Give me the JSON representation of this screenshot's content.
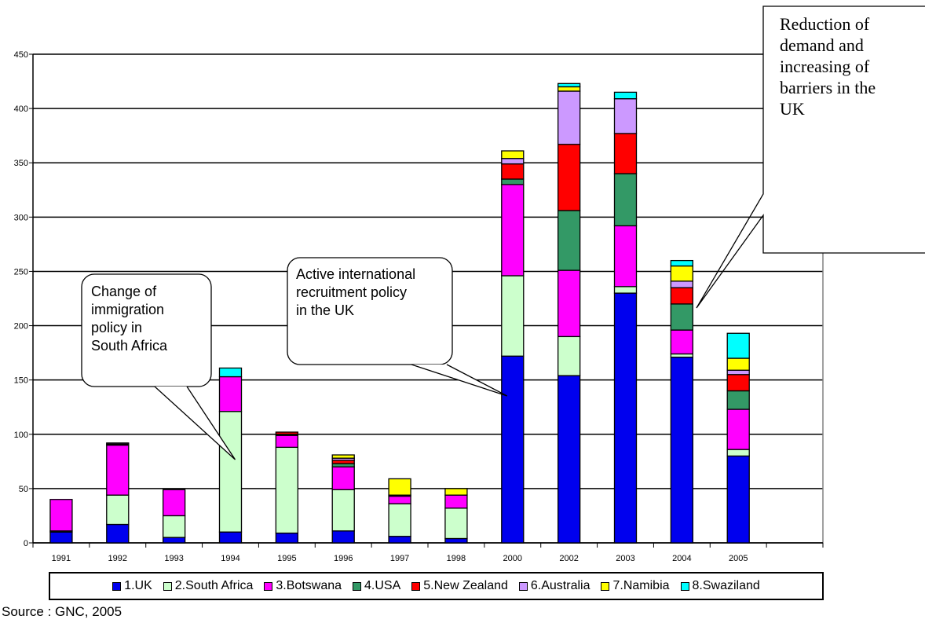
{
  "chart_data": {
    "type": "bar",
    "stacked": true,
    "categories": [
      "1991",
      "1992",
      "1993",
      "1994",
      "1995",
      "1996",
      "1997",
      "1998",
      "2000",
      "2002",
      "2003",
      "2004",
      "2005"
    ],
    "series": [
      {
        "name": "1.UK",
        "color": "#0000ee",
        "values": [
          10,
          17,
          5,
          10,
          9,
          11,
          6,
          4,
          172,
          154,
          230,
          171,
          80
        ]
      },
      {
        "name": "2.South Africa",
        "color": "#ccffcc",
        "values": [
          1,
          27,
          20,
          111,
          79,
          38,
          30,
          28,
          74,
          36,
          6,
          3,
          6
        ]
      },
      {
        "name": "3.Botswana",
        "color": "#ff00ff",
        "values": [
          29,
          46,
          24,
          32,
          11,
          21,
          7,
          12,
          84,
          61,
          56,
          22,
          37
        ]
      },
      {
        "name": "4.USA",
        "color": "#339966",
        "values": [
          0,
          0,
          0,
          0,
          1,
          3,
          0,
          0,
          5,
          55,
          48,
          24,
          17
        ]
      },
      {
        "name": "5.New Zealand",
        "color": "#ff0000",
        "values": [
          0,
          1,
          0,
          0,
          2,
          3,
          0,
          0,
          14,
          61,
          37,
          15,
          15
        ]
      },
      {
        "name": "6.Australia",
        "color": "#cc99ff",
        "values": [
          0,
          1,
          0,
          0,
          0,
          2,
          1,
          0,
          5,
          49,
          32,
          6,
          4
        ]
      },
      {
        "name": "7.Namibia",
        "color": "#ffff00",
        "values": [
          0,
          0,
          0,
          0,
          0,
          3,
          15,
          6,
          7,
          4,
          0,
          14,
          11
        ]
      },
      {
        "name": "8.Swaziland",
        "color": "#00ffff",
        "values": [
          0,
          0,
          0,
          8,
          0,
          0,
          0,
          0,
          0,
          3,
          6,
          5,
          23
        ]
      }
    ],
    "ylim": [
      0,
      450
    ],
    "yticks": [
      0,
      50,
      100,
      150,
      200,
      250,
      300,
      350,
      400,
      450
    ],
    "grid": true,
    "legend_position": "bottom",
    "annotations": [
      {
        "id": "immigration",
        "text": "Change of immigration policy in South Africa",
        "lines": [
          "Change of",
          "immigration",
          "policy in",
          "South Africa"
        ],
        "points_to": "1994"
      },
      {
        "id": "recruitment",
        "text": "Active international recruitment policy in the UK",
        "lines": [
          "Active international",
          "recruitment policy",
          "in the UK"
        ],
        "points_to": "2000"
      },
      {
        "id": "reduction",
        "text": "Reduction of demand and increasing of barriers in the UK",
        "lines": [
          "Reduction of",
          "demand and",
          "increasing of",
          "barriers in the",
          "UK"
        ],
        "points_to": "2004"
      }
    ]
  },
  "source": "Source : GNC, 2005"
}
